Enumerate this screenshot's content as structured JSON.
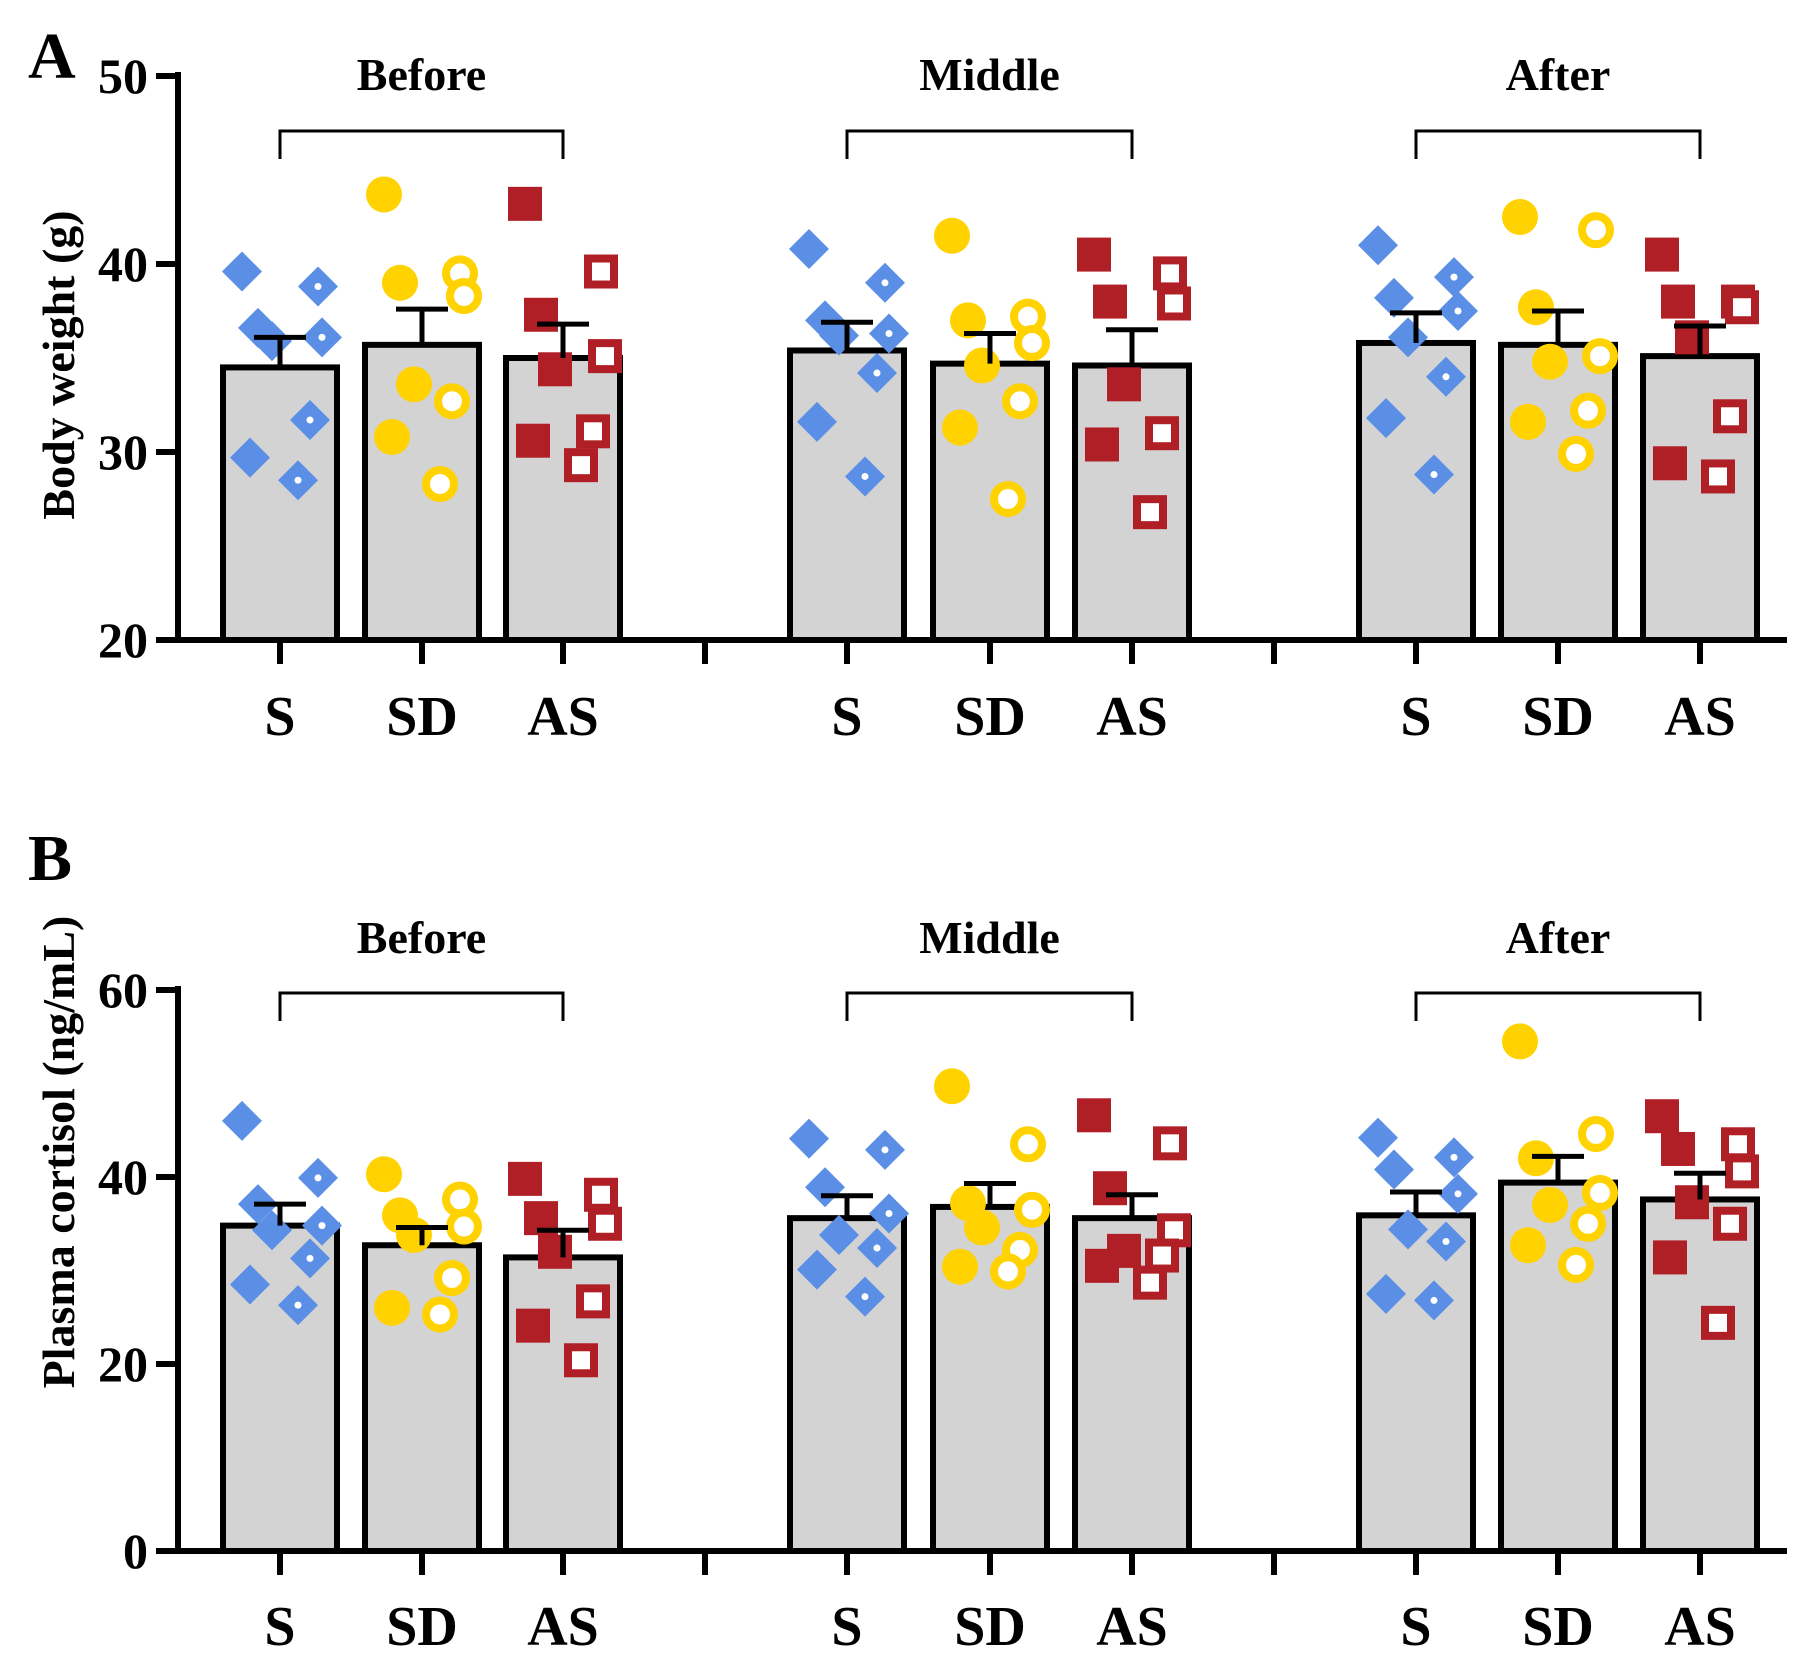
{
  "figure": {
    "panels": [
      {
        "label": "A",
        "ylabel": "Body weight (g)"
      },
      {
        "label": "B",
        "ylabel": "Plasma cortisol (ng/mL)"
      }
    ]
  },
  "colors": {
    "S": "#5b8fe6",
    "SD": "#ffd200",
    "AS": "#b01e26",
    "bar": "#d3d3d3",
    "axis": "#000000"
  },
  "chart_data": [
    {
      "type": "bar",
      "panel": "A",
      "title": "",
      "ylabel": "Body weight (g)",
      "ylim": [
        20,
        50
      ],
      "yticks": [
        20,
        30,
        40,
        50
      ],
      "groups": [
        "Before",
        "Middle",
        "After"
      ],
      "categories": [
        "S",
        "SD",
        "AS"
      ],
      "series": [
        {
          "name": "S",
          "marker": "diamond",
          "means": [
            34.5,
            35.4,
            35.8
          ],
          "sem": [
            1.6,
            1.5,
            1.6
          ],
          "points": [
            [
              39.6,
              38.8,
              36.6,
              36.1,
              35.9,
              31.7,
              29.7,
              28.5
            ],
            [
              40.8,
              39.0,
              37.0,
              36.3,
              36.2,
              34.2,
              31.6,
              28.7
            ],
            [
              41.0,
              39.3,
              38.2,
              37.5,
              36.1,
              34.0,
              31.8,
              28.8
            ]
          ]
        },
        {
          "name": "SD",
          "marker": "circle",
          "means": [
            35.7,
            34.7,
            35.7
          ],
          "sem": [
            1.9,
            1.6,
            1.8
          ],
          "points": [
            [
              43.7,
              39.5,
              39.0,
              38.3,
              33.6,
              32.7,
              30.8,
              28.3
            ],
            [
              41.5,
              37.2,
              37.0,
              35.8,
              34.6,
              32.7,
              31.3,
              27.5
            ],
            [
              42.5,
              41.8,
              37.7,
              35.1,
              34.8,
              32.2,
              31.6,
              29.9
            ]
          ]
        },
        {
          "name": "AS",
          "marker": "square",
          "means": [
            35.0,
            34.6,
            35.1
          ],
          "sem": [
            1.8,
            1.9,
            1.6
          ],
          "points": [
            [
              43.2,
              39.6,
              37.3,
              35.1,
              34.4,
              31.1,
              30.6,
              29.3
            ],
            [
              40.5,
              39.5,
              38.0,
              37.9,
              33.6,
              31.0,
              30.4,
              26.8
            ],
            [
              40.5,
              38.0,
              38.0,
              37.7,
              36.1,
              31.9,
              29.4,
              28.7
            ]
          ]
        }
      ]
    },
    {
      "type": "bar",
      "panel": "B",
      "title": "",
      "ylabel": "Plasma cortisol (ng/mL)",
      "ylim": [
        0,
        60
      ],
      "yticks": [
        0,
        20,
        40,
        60
      ],
      "groups": [
        "Before",
        "Middle",
        "After"
      ],
      "categories": [
        "S",
        "SD",
        "AS"
      ],
      "series": [
        {
          "name": "S",
          "marker": "diamond",
          "means": [
            34.8,
            35.6,
            35.9
          ],
          "sem": [
            2.3,
            2.4,
            2.5
          ],
          "points": [
            [
              46.0,
              39.9,
              37.1,
              34.8,
              34.3,
              31.3,
              28.5,
              26.3
            ],
            [
              44.1,
              42.9,
              38.9,
              36.1,
              33.8,
              32.4,
              30.1,
              27.2
            ],
            [
              44.2,
              42.1,
              40.8,
              38.2,
              34.4,
              33.1,
              27.5,
              26.8
            ]
          ]
        },
        {
          "name": "SD",
          "marker": "circle",
          "means": [
            32.7,
            36.8,
            39.4
          ],
          "sem": [
            1.9,
            2.5,
            2.8
          ],
          "points": [
            [
              40.3,
              37.6,
              35.9,
              34.7,
              33.8,
              29.2,
              26.0,
              25.3
            ],
            [
              49.7,
              43.5,
              37.2,
              36.5,
              34.6,
              32.2,
              30.4,
              29.9
            ],
            [
              54.5,
              44.6,
              42.0,
              38.3,
              37.0,
              35.0,
              32.7,
              30.6
            ]
          ]
        },
        {
          "name": "AS",
          "marker": "square",
          "means": [
            31.4,
            35.6,
            37.6
          ],
          "sem": [
            2.9,
            2.5,
            2.8
          ],
          "points": [
            [
              39.8,
              38.1,
              35.6,
              35.0,
              32.0,
              26.7,
              24.1,
              20.4
            ],
            [
              46.6,
              43.6,
              38.8,
              34.3,
              32.1,
              31.6,
              30.5,
              28.7
            ],
            [
              46.5,
              43.5,
              43.0,
              40.6,
              37.3,
              35.0,
              31.4,
              24.4
            ]
          ]
        }
      ]
    }
  ]
}
